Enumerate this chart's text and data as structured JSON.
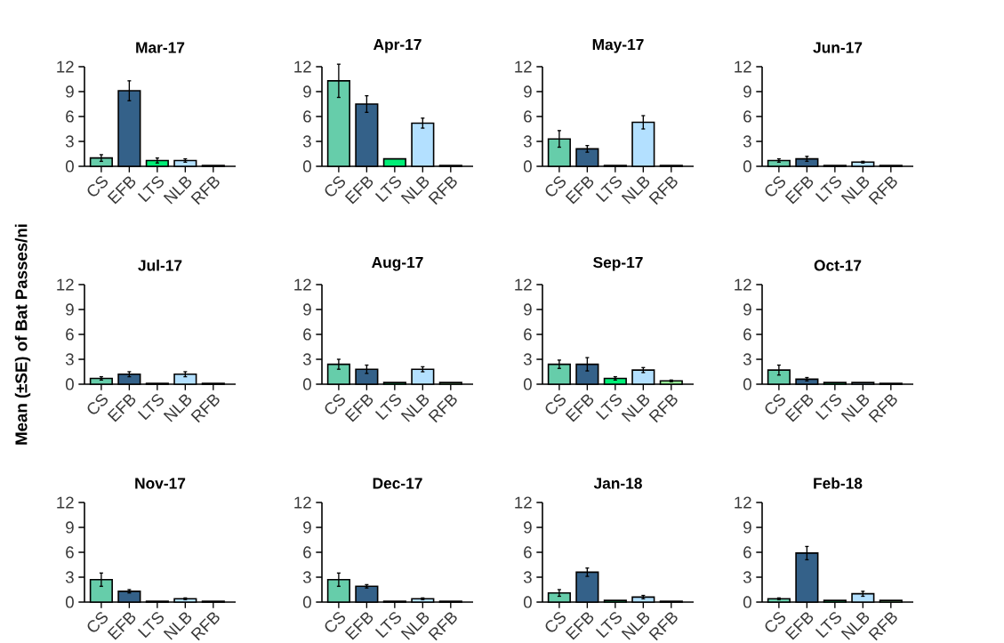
{
  "chart_data": [
    {
      "type": "bar",
      "title": "Mar-17",
      "categories": [
        "CS",
        "EFB",
        "LTS",
        "NLB",
        "RFB"
      ],
      "values": [
        1.0,
        9.1,
        0.7,
        0.7,
        0.1
      ],
      "errors": [
        0.4,
        1.2,
        0.3,
        0.2,
        null
      ],
      "colors": [
        "#66cdaa",
        "#346189",
        "#00ee76",
        "#b3e0ff",
        "#98fb98"
      ],
      "ylim": [
        0,
        12
      ],
      "yticks": [
        0,
        3,
        6,
        9,
        12
      ]
    },
    {
      "type": "bar",
      "title": "Apr-17",
      "categories": [
        "CS",
        "EFB",
        "LTS",
        "NLB",
        "RFB"
      ],
      "values": [
        10.3,
        7.5,
        0.9,
        5.2,
        0.1
      ],
      "errors": [
        2.0,
        1.0,
        null,
        0.6,
        null
      ],
      "colors": [
        "#66cdaa",
        "#346189",
        "#00ee76",
        "#b3e0ff",
        "#98fb98"
      ],
      "ylim": [
        0,
        12
      ],
      "yticks": [
        0,
        3,
        6,
        9,
        12
      ]
    },
    {
      "type": "bar",
      "title": "May-17",
      "categories": [
        "CS",
        "EFB",
        "LTS",
        "NLB",
        "RFB"
      ],
      "values": [
        3.3,
        2.1,
        0.1,
        5.3,
        0.1
      ],
      "errors": [
        1.0,
        0.4,
        null,
        0.8,
        null
      ],
      "colors": [
        "#66cdaa",
        "#346189",
        "#00ee76",
        "#b3e0ff",
        "#98fb98"
      ],
      "ylim": [
        0,
        12
      ],
      "yticks": [
        0,
        3,
        6,
        9,
        12
      ]
    },
    {
      "type": "bar",
      "title": "Jun-17",
      "categories": [
        "CS",
        "EFB",
        "LTS",
        "NLB",
        "RFB"
      ],
      "values": [
        0.7,
        0.9,
        0.1,
        0.5,
        0.1
      ],
      "errors": [
        0.2,
        0.3,
        null,
        0.1,
        null
      ],
      "colors": [
        "#66cdaa",
        "#346189",
        "#00ee76",
        "#b3e0ff",
        "#98fb98"
      ],
      "ylim": [
        0,
        12
      ],
      "yticks": [
        0,
        3,
        6,
        9,
        12
      ]
    },
    {
      "type": "bar",
      "title": "Jul-17",
      "ylabel": "Mean (±SE) of Bat Passes/ni",
      "categories": [
        "CS",
        "EFB",
        "LTS",
        "NLB",
        "RFB"
      ],
      "values": [
        0.7,
        1.2,
        0.1,
        1.2,
        0.1
      ],
      "errors": [
        0.2,
        0.3,
        null,
        0.3,
        null
      ],
      "colors": [
        "#66cdaa",
        "#346189",
        "#00ee76",
        "#b3e0ff",
        "#98fb98"
      ],
      "ylim": [
        0,
        12
      ],
      "yticks": [
        0,
        3,
        6,
        9,
        12
      ]
    },
    {
      "type": "bar",
      "title": "Aug-17",
      "categories": [
        "CS",
        "EFB",
        "LTS",
        "NLB",
        "RFB"
      ],
      "values": [
        2.4,
        1.8,
        0.2,
        1.8,
        0.2
      ],
      "errors": [
        0.6,
        0.5,
        null,
        0.3,
        null
      ],
      "colors": [
        "#66cdaa",
        "#346189",
        "#00ee76",
        "#b3e0ff",
        "#98fb98"
      ],
      "ylim": [
        0,
        12
      ],
      "yticks": [
        0,
        3,
        6,
        9,
        12
      ]
    },
    {
      "type": "bar",
      "title": "Sep-17",
      "categories": [
        "CS",
        "EFB",
        "LTS",
        "NLB",
        "RFB"
      ],
      "values": [
        2.4,
        2.4,
        0.7,
        1.7,
        0.4
      ],
      "errors": [
        0.5,
        0.8,
        0.2,
        0.3,
        0.1
      ],
      "colors": [
        "#66cdaa",
        "#346189",
        "#00ee76",
        "#b3e0ff",
        "#98fb98"
      ],
      "ylim": [
        0,
        12
      ],
      "yticks": [
        0,
        3,
        6,
        9,
        12
      ]
    },
    {
      "type": "bar",
      "title": "Oct-17",
      "categories": [
        "CS",
        "EFB",
        "LTS",
        "NLB",
        "RFB"
      ],
      "values": [
        1.7,
        0.6,
        0.2,
        0.2,
        0.1
      ],
      "errors": [
        0.6,
        0.2,
        null,
        null,
        null
      ],
      "colors": [
        "#66cdaa",
        "#346189",
        "#00ee76",
        "#b3e0ff",
        "#98fb98"
      ],
      "ylim": [
        0,
        12
      ],
      "yticks": [
        0,
        3,
        6,
        9,
        12
      ]
    },
    {
      "type": "bar",
      "title": "Nov-17",
      "categories": [
        "CS",
        "EFB",
        "LTS",
        "NLB",
        "RFB"
      ],
      "values": [
        2.7,
        1.3,
        0.1,
        0.4,
        0.1
      ],
      "errors": [
        0.8,
        0.2,
        null,
        0.1,
        null
      ],
      "colors": [
        "#66cdaa",
        "#346189",
        "#00ee76",
        "#b3e0ff",
        "#98fb98"
      ],
      "ylim": [
        0,
        12
      ],
      "yticks": [
        0,
        3,
        6,
        9,
        12
      ]
    },
    {
      "type": "bar",
      "title": "Dec-17",
      "categories": [
        "CS",
        "EFB",
        "LTS",
        "NLB",
        "RFB"
      ],
      "values": [
        2.7,
        1.9,
        0.1,
        0.4,
        0.1
      ],
      "errors": [
        0.8,
        0.2,
        null,
        0.1,
        null
      ],
      "colors": [
        "#66cdaa",
        "#346189",
        "#00ee76",
        "#b3e0ff",
        "#98fb98"
      ],
      "ylim": [
        0,
        12
      ],
      "yticks": [
        0,
        3,
        6,
        9,
        12
      ]
    },
    {
      "type": "bar",
      "title": "Jan-18",
      "categories": [
        "CS",
        "EFB",
        "LTS",
        "NLB",
        "RFB"
      ],
      "values": [
        1.1,
        3.6,
        0.2,
        0.6,
        0.1
      ],
      "errors": [
        0.4,
        0.5,
        null,
        0.2,
        null
      ],
      "colors": [
        "#66cdaa",
        "#346189",
        "#00ee76",
        "#b3e0ff",
        "#98fb98"
      ],
      "ylim": [
        0,
        12
      ],
      "yticks": [
        0,
        3,
        6,
        9,
        12
      ]
    },
    {
      "type": "bar",
      "title": "Feb-18",
      "categories": [
        "CS",
        "EFB",
        "LTS",
        "NLB",
        "RFB"
      ],
      "values": [
        0.4,
        5.9,
        0.2,
        1.0,
        0.2
      ],
      "errors": [
        0.1,
        0.8,
        null,
        0.3,
        null
      ],
      "colors": [
        "#66cdaa",
        "#346189",
        "#00ee76",
        "#b3e0ff",
        "#98fb98"
      ],
      "ylim": [
        0,
        12
      ],
      "yticks": [
        0,
        3,
        6,
        9,
        12
      ]
    }
  ]
}
